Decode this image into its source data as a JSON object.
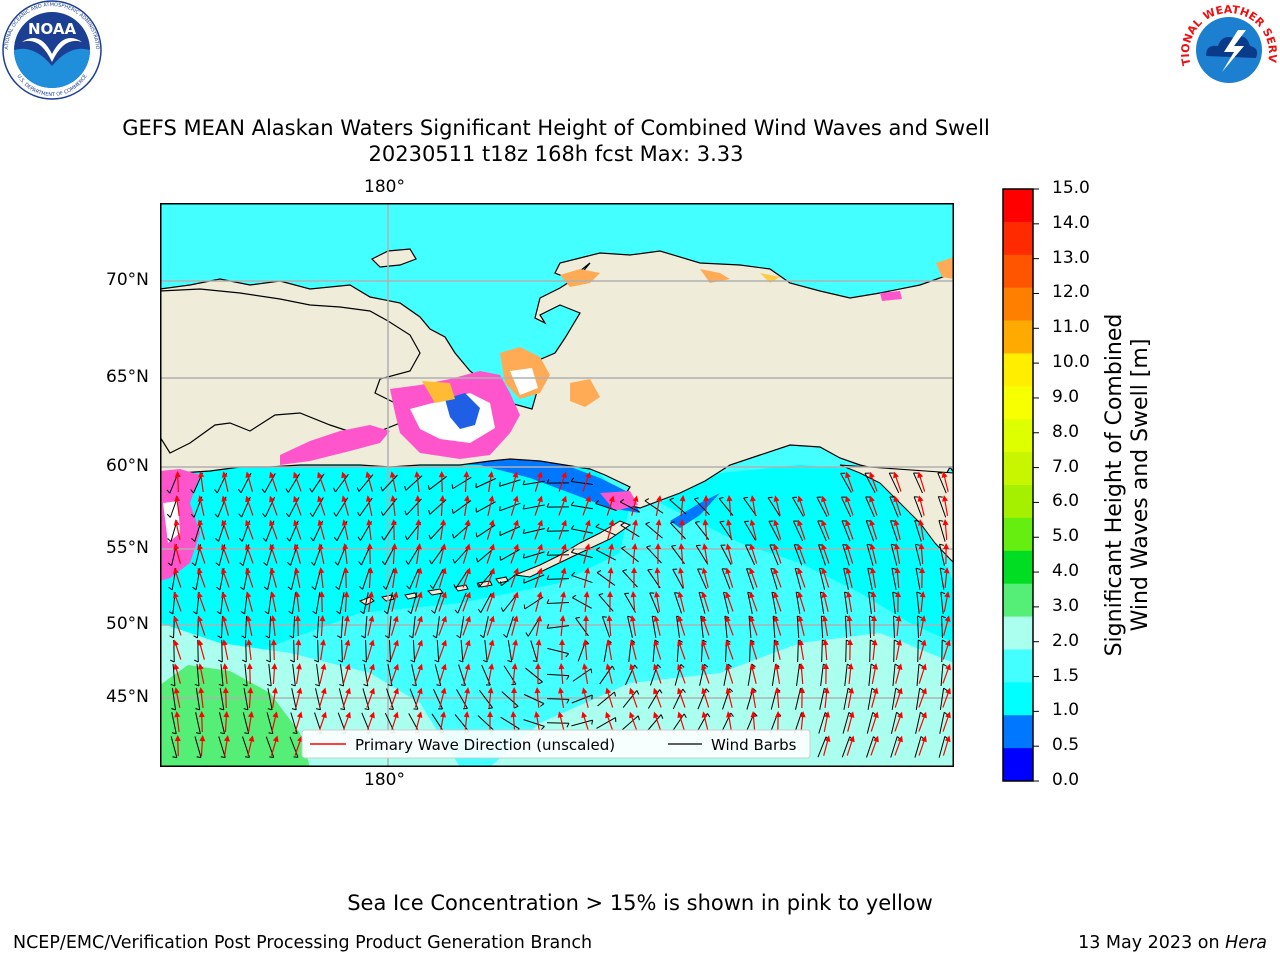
{
  "logos": {
    "noaa": {
      "text": "NOAA",
      "ring_top": "NATIONAL OCEANIC AND ATMOSPHERIC ADMINISTRATION",
      "ring_bottom": "U.S. DEPARTMENT OF COMMERCE"
    },
    "nws": {
      "ring_text": "NATIONAL WEATHER SERVICE"
    }
  },
  "title": {
    "line1": "GEFS MEAN Alaskan Waters Significant Height of Combined Wind Waves and Swell",
    "line2": "20230511 t18z 168h fcst   Max: 3.33"
  },
  "map": {
    "lon_top_label": "180°",
    "lon_bottom_label": "180°",
    "lat_labels": [
      "70°N",
      "65°N",
      "60°N",
      "55°N",
      "50°N",
      "45°N"
    ],
    "legend": {
      "wave_label": "Primary Wave Direction (unscaled)",
      "barb_label": "Wind Barbs",
      "wave_color": "#ff0000",
      "barb_color": "#000000"
    },
    "colors": {
      "land": "#efecda",
      "grid": "#b0b0b0",
      "wave_arrow": "#ff0000",
      "wind_barb": "#000000"
    }
  },
  "colorbar": {
    "label_line1": "Significant Height of Combined",
    "label_line2": "Wind Waves and Swell [m]",
    "ticks": [
      "15.0",
      "14.0",
      "13.0",
      "12.0",
      "11.0",
      "10.0",
      "9.0",
      "8.0",
      "7.0",
      "6.0",
      "5.0",
      "4.0",
      "3.0",
      "2.0",
      "1.5",
      "1.0",
      "0.5",
      "0.0"
    ],
    "colors": [
      "#ff0000",
      "#ff2a00",
      "#ff5500",
      "#ff8000",
      "#ffaa00",
      "#ffee00",
      "#f8ff00",
      "#ddff00",
      "#c8f500",
      "#a5f000",
      "#66ee11",
      "#00dd22",
      "#55ee77",
      "#aaffee",
      "#44ffff",
      "#00ffff",
      "#0077ff",
      "#0000ff"
    ]
  },
  "footnote": "Sea Ice Concentration > 15% is shown in pink to yellow",
  "credits": {
    "left": "NCEP/EMC/Verification Post Processing Product Generation Branch",
    "date": "13 May 2023 on ",
    "machine": "Hera"
  }
}
